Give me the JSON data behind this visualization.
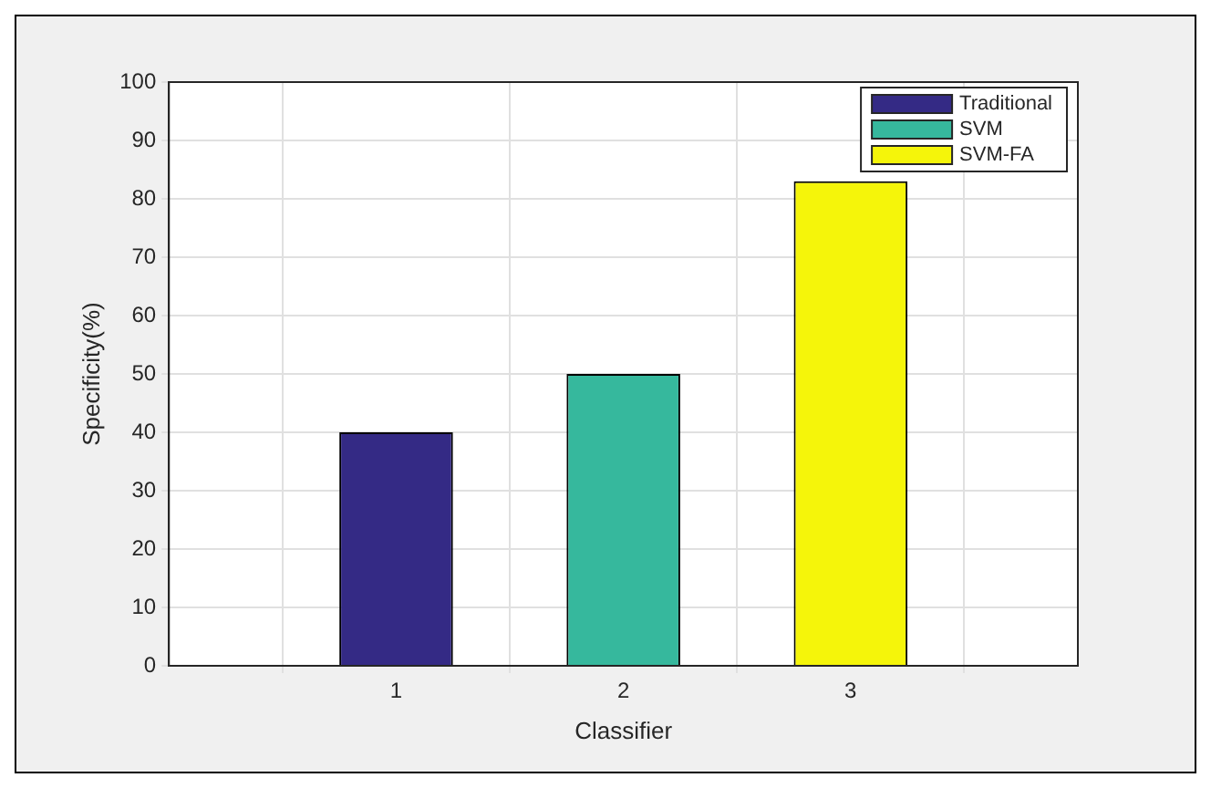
{
  "chart_data": {
    "type": "bar",
    "xlabel": "Classifier",
    "ylabel": "Specificity(%)",
    "xlim": [
      0,
      4
    ],
    "xticks": [
      1,
      2,
      3
    ],
    "ylim": [
      0,
      100
    ],
    "yticks": [
      0,
      10,
      20,
      30,
      40,
      50,
      60,
      70,
      80,
      90,
      100
    ],
    "grid": true,
    "legend": "top right",
    "series": [
      {
        "name": "Traditional",
        "color": "#342a85",
        "x": [
          1
        ],
        "values": [
          40
        ]
      },
      {
        "name": "SVM",
        "color": "#36b89d",
        "x": [
          2
        ],
        "values": [
          50
        ]
      },
      {
        "name": "SVM-FA",
        "color": "#f5f50a",
        "x": [
          3
        ],
        "values": [
          83
        ]
      }
    ]
  }
}
